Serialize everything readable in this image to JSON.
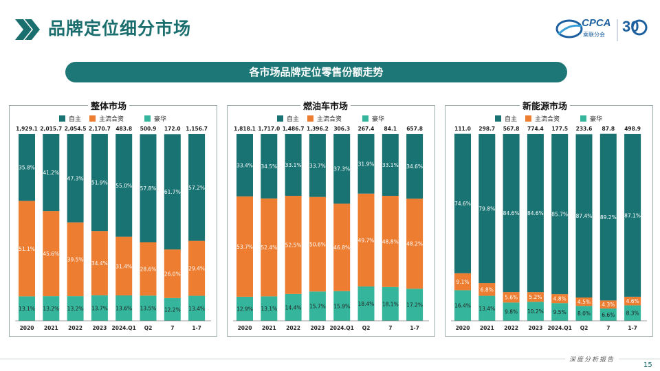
{
  "header": {
    "title": "品牌定位细分市场"
  },
  "logo": {
    "text": "CPCA",
    "sub": "乘联分会",
    "anniversary": "30"
  },
  "banner": {
    "text": "各市场品牌定位零售份额走势"
  },
  "footer": {
    "text": "深度分析报告",
    "page": "15"
  },
  "colors": {
    "zizhu": "#1a7373",
    "zhuliu": "#ec7d31",
    "haohua": "#35b59c",
    "teal_dark": "#1b6e6e"
  },
  "chart_data": [
    {
      "type": "bar",
      "title": "整体市场",
      "categories": [
        "2020",
        "2021",
        "2022",
        "2023",
        "2024.Q1",
        "Q2",
        "7",
        "1-7"
      ],
      "totals": [
        "1,929.1",
        "2,015.7",
        "2,054.5",
        "2,170.7",
        "483.8",
        "500.9",
        "172.0",
        "1,156.7"
      ],
      "series": [
        {
          "name": "自主",
          "values": [
            35.8,
            41.2,
            47.3,
            51.9,
            55.0,
            57.8,
            61.7,
            57.2
          ],
          "labels": [
            "35.8%",
            "41.2%",
            "47.3%",
            "51.9%",
            "55.0%",
            "57.8%",
            "61.7%",
            "57.2%"
          ]
        },
        {
          "name": "主流合资",
          "values": [
            51.1,
            45.6,
            39.5,
            34.4,
            31.4,
            28.6,
            26.0,
            29.4
          ],
          "labels": [
            "51.1%",
            "45.6%",
            "39.5%",
            "34.4%",
            "31.4%",
            "28.6%",
            "26.0%",
            "29.4%"
          ]
        },
        {
          "name": "豪华",
          "values": [
            13.1,
            13.2,
            13.2,
            13.7,
            13.6,
            13.5,
            12.2,
            13.4
          ],
          "labels": [
            "13.1%",
            "13.2%",
            "13.2%",
            "13.7%",
            "13.6%",
            "13.5%",
            "12.2%",
            "13.4%"
          ]
        }
      ],
      "ylim": [
        0,
        100
      ],
      "legend_position": "top"
    },
    {
      "type": "bar",
      "title": "燃油车市场",
      "categories": [
        "2020",
        "2021",
        "2022",
        "2023",
        "2024.Q1",
        "Q2",
        "7",
        "1-7"
      ],
      "totals": [
        "1,818.1",
        "1,717.0",
        "1,486.7",
        "1,396.2",
        "306.3",
        "267.4",
        "84.1",
        "657.8"
      ],
      "series": [
        {
          "name": "自主",
          "values": [
            33.4,
            34.5,
            33.1,
            33.7,
            37.3,
            31.9,
            33.1,
            34.6
          ],
          "labels": [
            "33.4%",
            "34.5%",
            "33.1%",
            "33.7%",
            "37.3%",
            "31.9%",
            "33.1%",
            "34.6%"
          ]
        },
        {
          "name": "主流合资",
          "values": [
            53.7,
            52.4,
            52.5,
            50.6,
            46.8,
            49.7,
            48.8,
            48.2
          ],
          "labels": [
            "53.7%",
            "52.4%",
            "52.5%",
            "50.6%",
            "46.8%",
            "49.7%",
            "48.8%",
            "48.2%"
          ]
        },
        {
          "name": "豪华",
          "values": [
            12.9,
            13.1,
            14.4,
            15.7,
            15.9,
            18.4,
            18.1,
            17.2
          ],
          "labels": [
            "12.9%",
            "13.1%",
            "14.4%",
            "15.7%",
            "15.9%",
            "18.4%",
            "18.1%",
            "17.2%"
          ]
        }
      ],
      "ylim": [
        0,
        100
      ],
      "legend_position": "top"
    },
    {
      "type": "bar",
      "title": "新能源市场",
      "categories": [
        "2020",
        "2021",
        "2022",
        "2023",
        "2024.Q1",
        "Q2",
        "7",
        "1-7"
      ],
      "totals": [
        "111.0",
        "298.7",
        "567.8",
        "774.4",
        "177.5",
        "233.6",
        "87.8",
        "498.9"
      ],
      "series": [
        {
          "name": "自主",
          "values": [
            74.6,
            79.8,
            84.6,
            84.6,
            85.7,
            87.4,
            89.2,
            87.1
          ],
          "labels": [
            "74.6%",
            "79.8%",
            "84.6%",
            "84.6%",
            "85.7%",
            "87.4%",
            "89.2%",
            "87.1%"
          ]
        },
        {
          "name": "主流合资",
          "values": [
            9.1,
            6.8,
            5.6,
            5.2,
            4.8,
            4.5,
            4.3,
            4.6
          ],
          "labels": [
            "9.1%",
            "6.8%",
            "5.6%",
            "5.2%",
            "4.8%",
            "4.5%",
            "4.3%",
            "4.6%"
          ]
        },
        {
          "name": "豪华",
          "values": [
            16.4,
            13.4,
            9.8,
            10.2,
            9.5,
            8.0,
            6.6,
            8.3
          ],
          "labels": [
            "16.4%",
            "13.4%",
            "9.8%",
            "10.2%",
            "9.5%",
            "8.0%",
            "6.6%",
            "8.3%"
          ]
        }
      ],
      "ylim": [
        0,
        100
      ],
      "legend_position": "top"
    }
  ]
}
